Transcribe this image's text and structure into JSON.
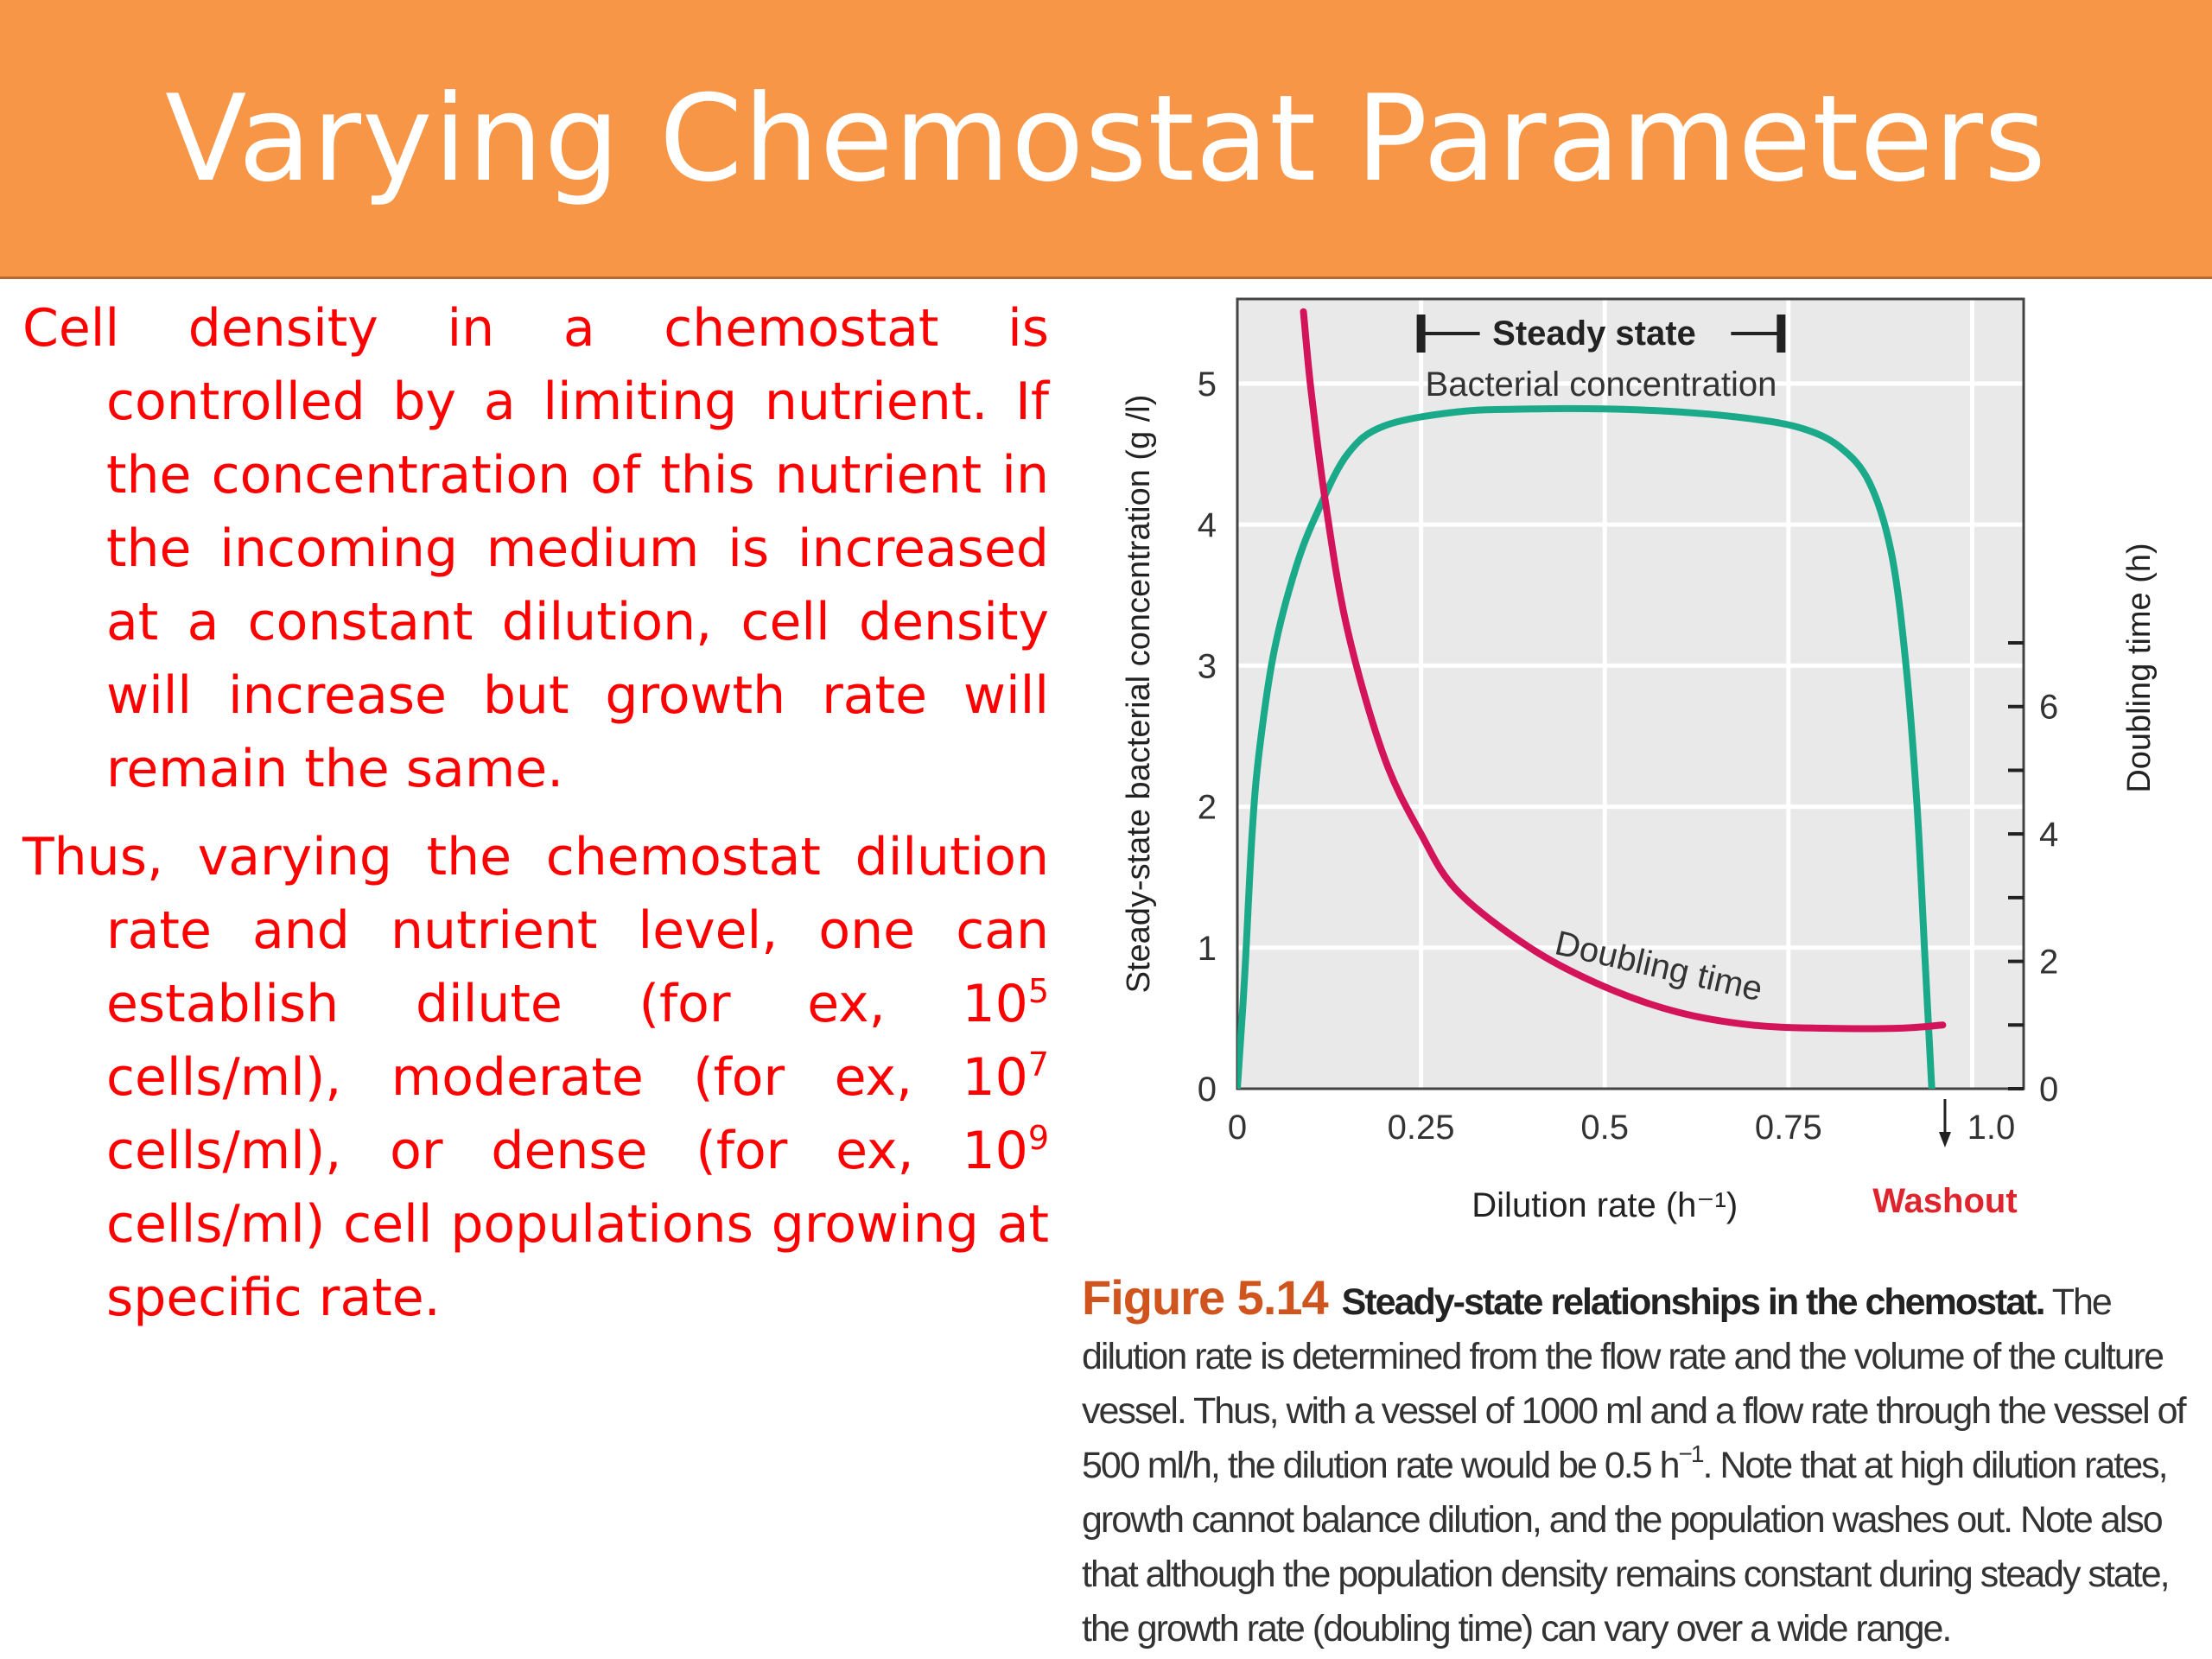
{
  "slide": {
    "title": "Varying Chemostat Parameters",
    "paragraph1": "Cell density in a chemostat is controlled by a limiting nutrient. If the concentration of this nutrient in the incoming medium is increased at a constant dilution, cell density will increase but growth rate will remain the same.",
    "paragraph2": {
      "lead": "Thus, varying the chemostat dilution rate and nutrient level, one can establish dilute (for ex, 10",
      "exp1": "5",
      "mid1": " cells/ml), moderate (for ex, 10",
      "exp2": "7",
      "mid2": " cells/ml), or dense (for ex, 10",
      "exp3": "9",
      "tail": " cells/ml) cell populations growing at specific rate."
    }
  },
  "caption": {
    "figure_number": "Figure 5.14",
    "figure_title": "Steady-state relationships in the chemostat.",
    "text_part1": "The dilution rate is determined from the flow rate and the volume of the culture vessel. Thus, with a vessel of 1000 ml and a flow rate through the vessel of 500 ml/h, the dilution rate would be 0.5 h",
    "text_sup": "−1",
    "text_part2": ". Note that at high dilution rates, growth cannot balance dilution, and the population washes out. Note also that although the population density remains constant during steady state, the growth rate (doubling time) can vary over a wide range."
  },
  "chart_data": {
    "type": "line",
    "xlabel": "Dilution rate (h⁻¹)",
    "ylabel": "Steady-state bacterial concentration (g /l)",
    "y2label": "Doubling time (h)",
    "xlim": [
      0,
      1.07
    ],
    "ylim": [
      0,
      5.6
    ],
    "y2lim": [
      0,
      12.4
    ],
    "x_ticks": [
      0,
      0.25,
      0.5,
      0.75,
      1.0
    ],
    "x_tick_labels": [
      "0",
      "0.25",
      "0.5",
      "0.75",
      "1.0"
    ],
    "y_ticks": [
      0,
      1,
      2,
      3,
      4,
      5
    ],
    "y2_ticks": [
      0,
      2,
      4,
      6
    ],
    "y2_minor_ticks": [
      1,
      3,
      5,
      7
    ],
    "grid": true,
    "series": [
      {
        "name": "Bacterial concentration",
        "axis": "left",
        "color": "#1aaa8a",
        "points": [
          [
            0,
            0
          ],
          [
            0.01,
            0.8
          ],
          [
            0.02,
            1.8
          ],
          [
            0.03,
            2.4
          ],
          [
            0.05,
            3.1
          ],
          [
            0.08,
            3.7
          ],
          [
            0.11,
            4.1
          ],
          [
            0.15,
            4.5
          ],
          [
            0.2,
            4.7
          ],
          [
            0.3,
            4.8
          ],
          [
            0.4,
            4.82
          ],
          [
            0.5,
            4.82
          ],
          [
            0.6,
            4.8
          ],
          [
            0.7,
            4.75
          ],
          [
            0.77,
            4.68
          ],
          [
            0.82,
            4.55
          ],
          [
            0.86,
            4.3
          ],
          [
            0.89,
            3.8
          ],
          [
            0.91,
            3.0
          ],
          [
            0.925,
            2.0
          ],
          [
            0.935,
            1.0
          ],
          [
            0.945,
            0
          ]
        ]
      },
      {
        "name": "Doubling time",
        "axis": "right",
        "color": "#d4145a",
        "points": [
          [
            0.09,
            12.2
          ],
          [
            0.1,
            11.0
          ],
          [
            0.12,
            9.2
          ],
          [
            0.15,
            7.2
          ],
          [
            0.2,
            5.2
          ],
          [
            0.25,
            4.0
          ],
          [
            0.3,
            3.1
          ],
          [
            0.4,
            2.2
          ],
          [
            0.5,
            1.6
          ],
          [
            0.6,
            1.2
          ],
          [
            0.7,
            1.0
          ],
          [
            0.8,
            0.95
          ],
          [
            0.9,
            0.95
          ],
          [
            0.96,
            1.0
          ]
        ]
      }
    ],
    "annotations": {
      "steady_state": "Steady state",
      "steady_state_range": [
        0.25,
        0.74
      ],
      "bacterial_label": "Bacterial concentration",
      "doubling_label": "Doubling time",
      "washout_label": "Washout",
      "washout_x": 0.97,
      "washout_color": "#e0242e"
    }
  }
}
